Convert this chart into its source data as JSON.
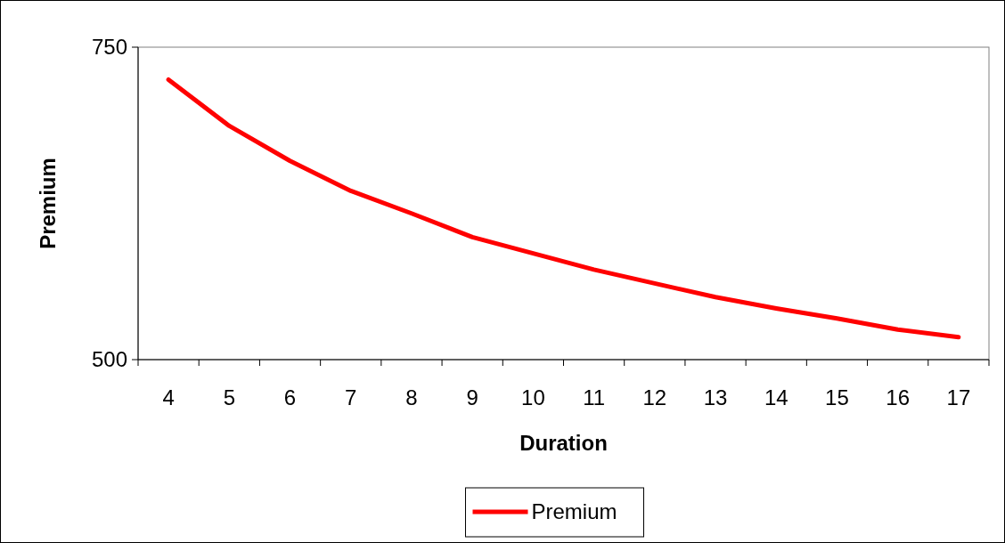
{
  "chart_data": {
    "type": "line",
    "xlabel": "Duration",
    "ylabel": "Premium",
    "categories": [
      "4",
      "5",
      "6",
      "7",
      "8",
      "9",
      "10",
      "11",
      "12",
      "13",
      "14",
      "15",
      "16",
      "17"
    ],
    "series": [
      {
        "name": "Premium",
        "color": "#ff0000",
        "values": [
          724,
          687,
          659,
          635,
          617,
          598,
          585,
          572,
          561,
          550,
          541,
          533,
          524,
          518
        ]
      }
    ],
    "ylim": [
      500,
      750
    ],
    "yticks": [
      500,
      750
    ],
    "grid": false,
    "legend": "bottom",
    "marker": "none",
    "line_style": "solid"
  }
}
